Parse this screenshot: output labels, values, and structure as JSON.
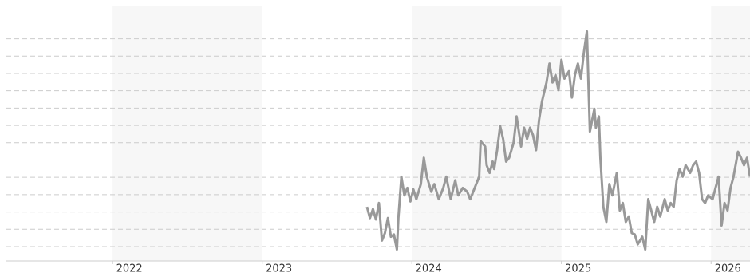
{
  "chart_data": {
    "type": "line",
    "xlim": [
      2021.29,
      2026.26
    ],
    "xticks": [
      2022,
      2023,
      2024,
      2025,
      2026
    ],
    "ylim": [
      0.17,
      14.87
    ],
    "yticks": [
      1,
      2,
      3,
      4,
      5,
      6,
      7,
      8,
      9,
      10,
      11,
      12,
      13
    ],
    "grid": true,
    "series": [
      {
        "color": "#999999",
        "x": [
          2023.7,
          2023.72,
          2023.74,
          2023.76,
          2023.78,
          2023.8,
          2023.82,
          2023.84,
          2023.86,
          2023.88,
          2023.9,
          2023.91,
          2023.93,
          2023.95,
          2023.97,
          2023.99,
          2024.01,
          2024.03,
          2024.06,
          2024.08,
          2024.1,
          2024.13,
          2024.15,
          2024.18,
          2024.21,
          2024.23,
          2024.26,
          2024.29,
          2024.31,
          2024.34,
          2024.37,
          2024.39,
          2024.42,
          2024.45,
          2024.46,
          2024.49,
          2024.5,
          2024.52,
          2024.54,
          2024.55,
          2024.57,
          2024.59,
          2024.61,
          2024.63,
          2024.65,
          2024.68,
          2024.7,
          2024.73,
          2024.75,
          2024.77,
          2024.79,
          2024.81,
          2024.83,
          2024.85,
          2024.87,
          2024.9,
          2024.92,
          2024.94,
          2024.96,
          2024.98,
          2025.0,
          2025.02,
          2025.05,
          2025.07,
          2025.09,
          2025.11,
          2025.13,
          2025.15,
          2025.17,
          2025.18,
          2025.19,
          2025.22,
          2025.23,
          2025.25,
          2025.26,
          2025.28,
          2025.3,
          2025.32,
          2025.34,
          2025.37,
          2025.39,
          2025.41,
          2025.43,
          2025.45,
          2025.47,
          2025.49,
          2025.51,
          2025.54,
          2025.56,
          2025.58,
          2025.6,
          2025.62,
          2025.64,
          2025.66,
          2025.69,
          2025.71,
          2025.73,
          2025.75,
          2025.77,
          2025.79,
          2025.81,
          2025.83,
          2025.86,
          2025.88,
          2025.9,
          2025.92,
          2025.94,
          2025.96,
          2025.98,
          2026.01,
          2026.03,
          2026.05,
          2026.07,
          2026.09,
          2026.11,
          2026.13,
          2026.15,
          2026.18,
          2026.2,
          2026.22,
          2026.24,
          2026.26
        ],
        "values": [
          3.3,
          2.65,
          3.17,
          2.57,
          3.52,
          1.35,
          1.78,
          2.65,
          1.57,
          1.7,
          0.83,
          2.65,
          5.04,
          3.96,
          4.39,
          3.61,
          4.3,
          3.74,
          4.61,
          6.13,
          5.04,
          4.17,
          4.61,
          3.74,
          4.39,
          5.04,
          3.74,
          4.83,
          3.96,
          4.39,
          4.17,
          3.74,
          4.39,
          5.04,
          7.09,
          6.78,
          5.7,
          5.26,
          5.91,
          5.48,
          6.57,
          7.96,
          7.22,
          5.91,
          6.13,
          7.0,
          8.52,
          6.78,
          7.87,
          7.22,
          7.87,
          7.43,
          6.57,
          8.3,
          9.39,
          10.48,
          11.57,
          10.48,
          10.91,
          10.04,
          11.78,
          10.7,
          11.13,
          9.61,
          10.91,
          11.57,
          10.7,
          12.22,
          13.43,
          10.48,
          7.65,
          8.96,
          7.87,
          8.52,
          6.13,
          3.3,
          2.43,
          4.61,
          3.96,
          5.26,
          3.09,
          3.52,
          2.43,
          2.74,
          1.78,
          1.7,
          1.13,
          1.57,
          0.83,
          3.74,
          3.09,
          2.43,
          3.3,
          2.74,
          3.74,
          3.09,
          3.52,
          3.3,
          4.83,
          5.48,
          5.04,
          5.7,
          5.26,
          5.7,
          5.91,
          5.26,
          3.74,
          3.52,
          3.96,
          3.74,
          4.39,
          5.04,
          2.22,
          3.52,
          3.09,
          4.39,
          5.04,
          6.48,
          6.13,
          5.7,
          6.13,
          5.04
        ]
      }
    ]
  }
}
